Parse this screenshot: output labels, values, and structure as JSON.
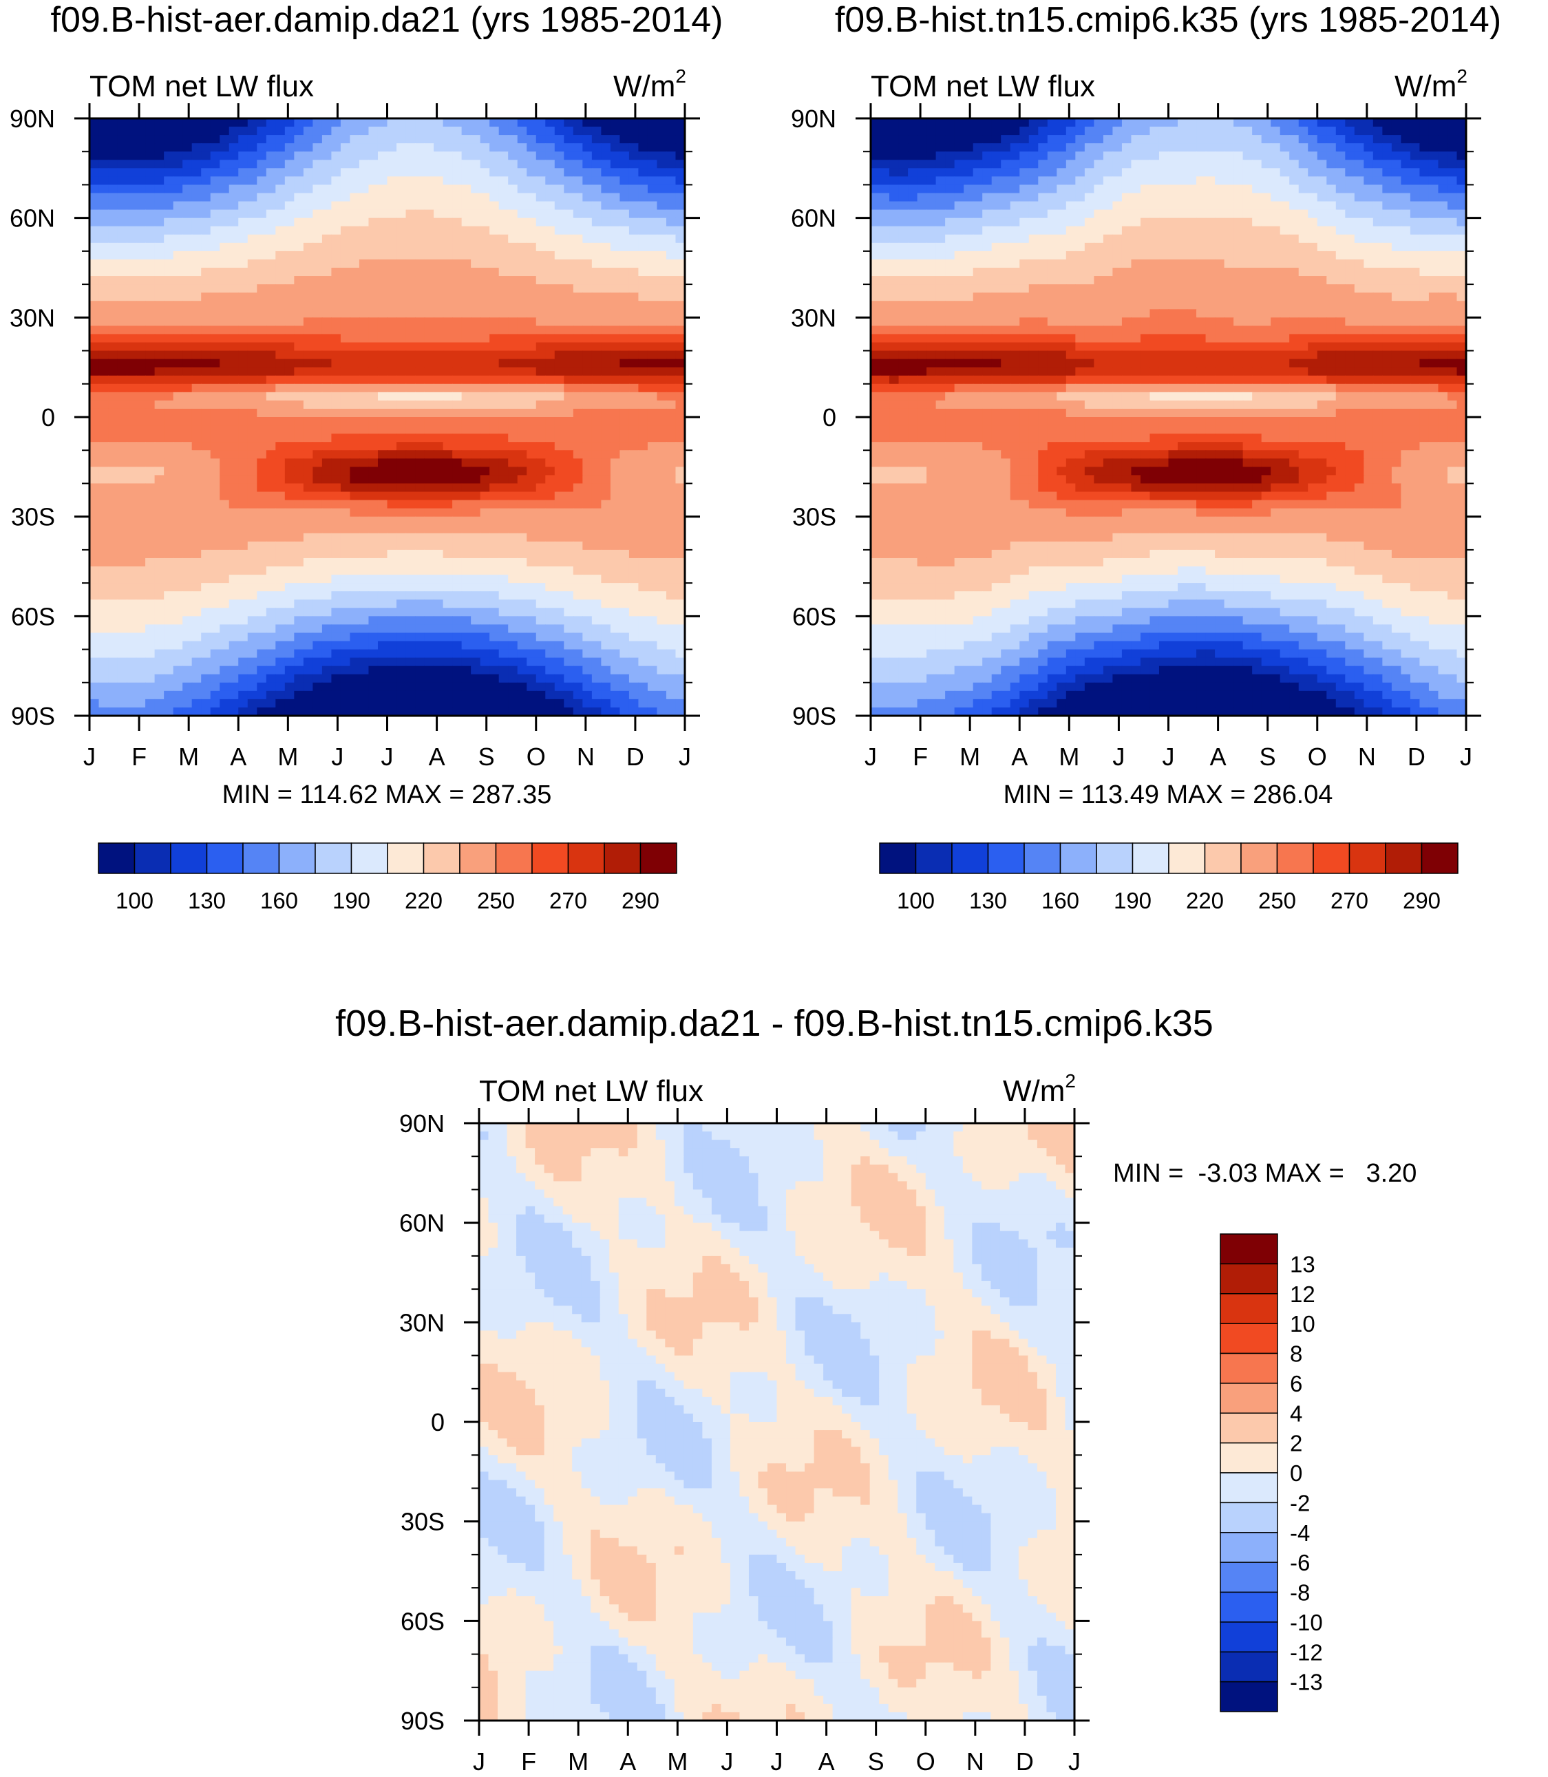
{
  "figure": {
    "diff_title": "f09.B-hist-aer.damip.da21 - f09.B-hist.tn15.cmip6.k35"
  },
  "chart_data": [
    {
      "type": "heatmap",
      "id": "case1",
      "title": "f09.B-hist-aer.damip.da21 (yrs 1985-2014)",
      "left_label": "TOM net LW flux",
      "right_label": "W/m",
      "right_label_sup": "2",
      "x_tick_labels": [
        "J",
        "F",
        "M",
        "A",
        "M",
        "J",
        "J",
        "A",
        "S",
        "O",
        "N",
        "D",
        "J"
      ],
      "y_tick_labels": [
        "90N",
        "60N",
        "30N",
        "0",
        "30S",
        "60S",
        "90S"
      ],
      "x_range": [
        0,
        12
      ],
      "y_range": [
        -90,
        90
      ],
      "stats": "MIN = 114.62 MAX = 287.35",
      "field": "climatology",
      "colorbar": {
        "orientation": "horizontal",
        "labels": [
          "100",
          "130",
          "160",
          "190",
          "220",
          "250",
          "270",
          "290"
        ],
        "colors": [
          "#00127f",
          "#0a2db3",
          "#1140d9",
          "#2b5ff0",
          "#5584f5",
          "#8cb0fb",
          "#b9d2fd",
          "#dbe9fd",
          "#fde9d6",
          "#fcc9ac",
          "#f9a07c",
          "#f7764f",
          "#f14a22",
          "#d93410",
          "#b11d06",
          "#7f0004"
        ]
      }
    },
    {
      "type": "heatmap",
      "id": "case2",
      "title": "f09.B-hist.tn15.cmip6.k35 (yrs 1985-2014)",
      "left_label": "TOM net LW flux",
      "right_label": "W/m",
      "right_label_sup": "2",
      "x_tick_labels": [
        "J",
        "F",
        "M",
        "A",
        "M",
        "J",
        "J",
        "A",
        "S",
        "O",
        "N",
        "D",
        "J"
      ],
      "y_tick_labels": [
        "90N",
        "60N",
        "30N",
        "0",
        "30S",
        "60S",
        "90S"
      ],
      "x_range": [
        0,
        12
      ],
      "y_range": [
        -90,
        90
      ],
      "stats": "MIN = 113.49 MAX = 286.04",
      "field": "climatology",
      "colorbar": {
        "orientation": "horizontal",
        "labels": [
          "100",
          "130",
          "160",
          "190",
          "220",
          "250",
          "270",
          "290"
        ],
        "colors": [
          "#00127f",
          "#0a2db3",
          "#1140d9",
          "#2b5ff0",
          "#5584f5",
          "#8cb0fb",
          "#b9d2fd",
          "#dbe9fd",
          "#fde9d6",
          "#fcc9ac",
          "#f9a07c",
          "#f7764f",
          "#f14a22",
          "#d93410",
          "#b11d06",
          "#7f0004"
        ]
      }
    },
    {
      "type": "heatmap",
      "id": "diff",
      "title": "",
      "left_label": "TOM net LW flux",
      "right_label": "W/m",
      "right_label_sup": "2",
      "x_tick_labels": [
        "J",
        "F",
        "M",
        "A",
        "M",
        "J",
        "J",
        "A",
        "S",
        "O",
        "N",
        "D",
        "J"
      ],
      "y_tick_labels": [
        "90N",
        "60N",
        "30N",
        "0",
        "30S",
        "60S",
        "90S"
      ],
      "x_range": [
        0,
        12
      ],
      "y_range": [
        -90,
        90
      ],
      "stats": "MIN =  -3.03 MAX =   3.20",
      "field": "difference",
      "colorbar": {
        "orientation": "vertical",
        "labels": [
          "13",
          "12",
          "10",
          "8",
          "6",
          "4",
          "2",
          "0",
          "-2",
          "-4",
          "-6",
          "-8",
          "-10",
          "-12",
          "-13"
        ],
        "colors": [
          "#7f0004",
          "#b11d06",
          "#d93410",
          "#f14a22",
          "#f7764f",
          "#f9a07c",
          "#fcc9ac",
          "#fde9d6",
          "#dbe9fd",
          "#b9d2fd",
          "#8cb0fb",
          "#5584f5",
          "#2b5ff0",
          "#1140d9",
          "#0a2db3",
          "#00127f"
        ]
      }
    }
  ]
}
